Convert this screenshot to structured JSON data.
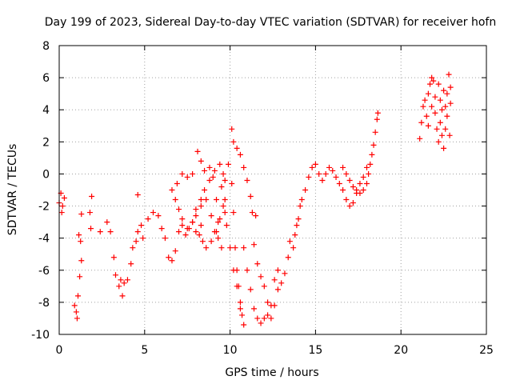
{
  "chart_data": {
    "type": "scatter",
    "title": "Day 199 of 2023, Sidereal Day-to-day VTEC variation (SDTVAR) for receiver hofn",
    "xlabel": "GPS time / hours",
    "ylabel": "SDTVAR / TECUs",
    "xlim": [
      0,
      25
    ],
    "ylim": [
      -10,
      8
    ],
    "xticks": [
      0,
      5,
      10,
      15,
      20,
      25
    ],
    "xtick_labels": [
      "0",
      "5",
      "10",
      "15",
      "20",
      "25"
    ],
    "yticks": [
      -10,
      -8,
      -6,
      -4,
      -2,
      0,
      2,
      4,
      6,
      8
    ],
    "ytick_labels": [
      "-10",
      "-8",
      "-6",
      "-4",
      "-2",
      "0",
      "2",
      "4",
      "6",
      "8"
    ],
    "grid": true,
    "marker": "+",
    "color": "#ff0000",
    "series": [
      {
        "points": [
          [
            0.0,
            -1.8
          ],
          [
            0.1,
            -1.2
          ],
          [
            0.2,
            -2.0
          ],
          [
            0.3,
            -1.5
          ],
          [
            0.15,
            -2.4
          ],
          [
            0.9,
            -8.2
          ],
          [
            1.0,
            -8.6
          ],
          [
            1.1,
            -7.6
          ],
          [
            1.2,
            -6.4
          ],
          [
            1.3,
            -5.4
          ],
          [
            1.25,
            -4.2
          ],
          [
            1.15,
            -3.8
          ],
          [
            1.3,
            -2.5
          ],
          [
            1.05,
            -9.0
          ],
          [
            1.8,
            -2.4
          ],
          [
            1.9,
            -1.4
          ],
          [
            1.85,
            -3.4
          ],
          [
            2.4,
            -3.6
          ],
          [
            2.8,
            -3.0
          ],
          [
            3.0,
            -3.6
          ],
          [
            3.2,
            -5.2
          ],
          [
            3.3,
            -6.3
          ],
          [
            3.5,
            -7.0
          ],
          [
            3.7,
            -7.6
          ],
          [
            3.6,
            -6.6
          ],
          [
            3.8,
            -6.8
          ],
          [
            4.0,
            -6.6
          ],
          [
            4.2,
            -5.6
          ],
          [
            4.3,
            -4.6
          ],
          [
            4.5,
            -4.2
          ],
          [
            4.6,
            -3.6
          ],
          [
            4.8,
            -3.2
          ],
          [
            4.9,
            -4.0
          ],
          [
            4.6,
            -1.3
          ],
          [
            5.2,
            -2.8
          ],
          [
            5.5,
            -2.4
          ],
          [
            5.8,
            -2.6
          ],
          [
            6.0,
            -3.4
          ],
          [
            6.2,
            -4.0
          ],
          [
            6.4,
            -5.2
          ],
          [
            6.6,
            -5.4
          ],
          [
            6.8,
            -4.8
          ],
          [
            7.0,
            -3.6
          ],
          [
            7.2,
            -3.2
          ],
          [
            7.4,
            -3.8
          ],
          [
            7.6,
            -3.4
          ],
          [
            7.8,
            -3.0
          ],
          [
            8.0,
            -3.6
          ],
          [
            8.2,
            -3.8
          ],
          [
            8.3,
            -3.2
          ],
          [
            6.6,
            -1.0
          ],
          [
            6.9,
            -0.6
          ],
          [
            7.2,
            0.0
          ],
          [
            7.5,
            -0.2
          ],
          [
            7.8,
            0.0
          ],
          [
            8.1,
            1.4
          ],
          [
            8.3,
            0.8
          ],
          [
            8.5,
            0.2
          ],
          [
            8.8,
            0.4
          ],
          [
            9.1,
            0.2
          ],
          [
            9.4,
            0.6
          ],
          [
            9.6,
            0.0
          ],
          [
            6.8,
            -1.6
          ],
          [
            7.0,
            -2.2
          ],
          [
            7.2,
            -2.8
          ],
          [
            7.5,
            -3.4
          ],
          [
            7.8,
            -3.0
          ],
          [
            8.0,
            -2.2
          ],
          [
            8.3,
            -1.6
          ],
          [
            8.5,
            -1.0
          ],
          [
            8.8,
            -0.4
          ],
          [
            9.0,
            -0.2
          ],
          [
            9.2,
            -1.6
          ],
          [
            8.0,
            -2.6
          ],
          [
            8.3,
            -2.0
          ],
          [
            8.6,
            -1.6
          ],
          [
            8.9,
            -2.6
          ],
          [
            9.1,
            -3.6
          ],
          [
            9.3,
            -4.0
          ],
          [
            9.5,
            -4.6
          ],
          [
            9.3,
            -3.0
          ],
          [
            8.4,
            -4.2
          ],
          [
            8.6,
            -4.6
          ],
          [
            8.9,
            -4.2
          ],
          [
            9.2,
            -3.6
          ],
          [
            9.4,
            -2.8
          ],
          [
            9.6,
            -2.0
          ],
          [
            9.7,
            -2.4
          ],
          [
            9.7,
            -0.4
          ],
          [
            9.9,
            0.6
          ],
          [
            10.1,
            -0.6
          ],
          [
            10.2,
            -2.4
          ],
          [
            10.3,
            -4.6
          ],
          [
            10.4,
            -6.0
          ],
          [
            10.5,
            -7.0
          ],
          [
            10.6,
            -8.0
          ],
          [
            10.7,
            -8.8
          ],
          [
            10.8,
            -9.4
          ],
          [
            9.5,
            -0.8
          ],
          [
            9.7,
            -1.6
          ],
          [
            9.8,
            -3.2
          ],
          [
            10.0,
            -4.6
          ],
          [
            10.2,
            -6.0
          ],
          [
            10.4,
            -7.0
          ],
          [
            10.6,
            -8.4
          ],
          [
            10.1,
            2.8
          ],
          [
            10.2,
            2.0
          ],
          [
            10.4,
            1.6
          ],
          [
            10.6,
            1.2
          ],
          [
            10.8,
            0.4
          ],
          [
            11.0,
            -0.4
          ],
          [
            11.2,
            -1.4
          ],
          [
            11.3,
            -2.4
          ],
          [
            11.5,
            -2.6
          ],
          [
            10.8,
            -4.6
          ],
          [
            11.0,
            -6.0
          ],
          [
            11.2,
            -7.2
          ],
          [
            11.4,
            -8.4
          ],
          [
            11.6,
            -9.0
          ],
          [
            11.8,
            -9.3
          ],
          [
            12.0,
            -9.0
          ],
          [
            12.2,
            -8.8
          ],
          [
            12.4,
            -8.2
          ],
          [
            11.4,
            -4.4
          ],
          [
            11.6,
            -5.6
          ],
          [
            11.8,
            -6.4
          ],
          [
            12.0,
            -7.0
          ],
          [
            12.2,
            -8.0
          ],
          [
            12.4,
            -9.0
          ],
          [
            12.6,
            -8.2
          ],
          [
            12.8,
            -7.2
          ],
          [
            12.6,
            -6.6
          ],
          [
            12.8,
            -6.0
          ],
          [
            13.0,
            -6.8
          ],
          [
            13.2,
            -6.2
          ],
          [
            13.4,
            -5.2
          ],
          [
            13.5,
            -4.2
          ],
          [
            13.7,
            -4.6
          ],
          [
            13.8,
            -3.8
          ],
          [
            13.9,
            -3.2
          ],
          [
            14.0,
            -2.8
          ],
          [
            14.1,
            -2.0
          ],
          [
            14.2,
            -1.6
          ],
          [
            14.4,
            -1.0
          ],
          [
            14.6,
            -0.2
          ],
          [
            14.8,
            0.4
          ],
          [
            15.0,
            0.6
          ],
          [
            15.2,
            0.0
          ],
          [
            15.4,
            -0.4
          ],
          [
            15.6,
            0.0
          ],
          [
            15.8,
            0.4
          ],
          [
            16.0,
            0.2
          ],
          [
            16.2,
            -0.2
          ],
          [
            16.4,
            -0.6
          ],
          [
            16.6,
            -1.0
          ],
          [
            16.8,
            -1.6
          ],
          [
            17.0,
            -2.0
          ],
          [
            17.2,
            -1.8
          ],
          [
            17.4,
            -1.2
          ],
          [
            17.6,
            -0.6
          ],
          [
            17.8,
            -0.2
          ],
          [
            18.0,
            0.4
          ],
          [
            16.6,
            0.4
          ],
          [
            16.8,
            0.0
          ],
          [
            17.0,
            -0.4
          ],
          [
            17.2,
            -0.8
          ],
          [
            17.4,
            -1.0
          ],
          [
            17.6,
            -1.2
          ],
          [
            17.8,
            -1.0
          ],
          [
            18.0,
            -0.6
          ],
          [
            18.1,
            0.0
          ],
          [
            18.2,
            0.6
          ],
          [
            18.3,
            1.2
          ],
          [
            18.4,
            1.8
          ],
          [
            18.5,
            2.6
          ],
          [
            18.6,
            3.4
          ],
          [
            18.65,
            3.8
          ],
          [
            21.1,
            2.2
          ],
          [
            21.2,
            3.2
          ],
          [
            21.3,
            4.2
          ],
          [
            21.4,
            4.6
          ],
          [
            21.5,
            3.6
          ],
          [
            21.6,
            5.0
          ],
          [
            21.7,
            5.6
          ],
          [
            21.8,
            6.0
          ],
          [
            21.9,
            5.8
          ],
          [
            22.0,
            4.8
          ],
          [
            21.6,
            3.0
          ],
          [
            21.8,
            4.2
          ],
          [
            22.0,
            3.8
          ],
          [
            22.1,
            2.8
          ],
          [
            22.2,
            2.0
          ],
          [
            22.3,
            3.2
          ],
          [
            22.4,
            2.4
          ],
          [
            22.5,
            1.6
          ],
          [
            22.6,
            2.8
          ],
          [
            22.7,
            3.6
          ],
          [
            22.2,
            5.6
          ],
          [
            22.3,
            4.6
          ],
          [
            22.4,
            4.0
          ],
          [
            22.5,
            5.2
          ],
          [
            22.6,
            4.2
          ],
          [
            22.7,
            5.0
          ],
          [
            22.8,
            6.2
          ],
          [
            22.9,
            5.4
          ],
          [
            22.85,
            2.4
          ],
          [
            22.9,
            4.4
          ]
        ]
      }
    ]
  }
}
